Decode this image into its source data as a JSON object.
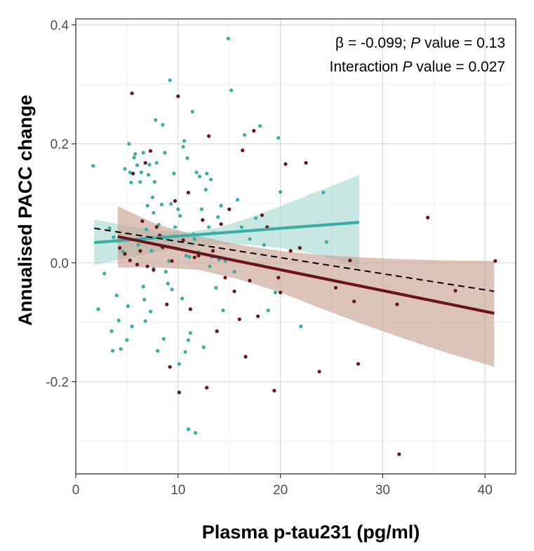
{
  "chart_data": {
    "type": "scatter",
    "title": "",
    "xlabel": "Plasma p-tau231 (pg/ml)",
    "ylabel": "Annualised PACC change",
    "xlim": [
      0,
      43
    ],
    "ylim": [
      -0.355,
      0.41
    ],
    "x_ticks": [
      0,
      10,
      20,
      30,
      40
    ],
    "y_ticks": [
      -0.2,
      0.0,
      0.2,
      0.4
    ],
    "x_tick_labels": [
      "0",
      "10",
      "20",
      "30",
      "40"
    ],
    "y_tick_labels": [
      "-0.2",
      "0.0",
      "0.2",
      "0.4"
    ],
    "grid": true,
    "annotation": {
      "line1_prefix": "β = -0.099; ",
      "line1_p": "P",
      "line1_suffix": " value = 0.13",
      "line2_prefix": "Interaction ",
      "line2_p": "P",
      "line2_suffix": " value = 0.027"
    },
    "series": [
      {
        "color": "#3aaea5",
        "band_color": "#a7d7d1",
        "fit": {
          "x": [
            1.8,
            27.7
          ],
          "y": [
            0.034,
            0.068
          ]
        },
        "band": {
          "x": [
            1.8,
            5,
            8,
            11,
            14,
            17,
            20,
            23,
            25,
            27.7
          ],
          "upper": [
            0.073,
            0.062,
            0.054,
            0.052,
            0.059,
            0.076,
            0.095,
            0.116,
            0.129,
            0.148
          ],
          "lower": [
            -0.004,
            0.008,
            0.018,
            0.028,
            0.031,
            0.03,
            0.025,
            0.016,
            0.007,
            -0.01
          ]
        },
        "points": [
          [
            1.7,
            0.163
          ],
          [
            2.2,
            -0.078
          ],
          [
            2.8,
            -0.018
          ],
          [
            3.3,
            0.058
          ],
          [
            3.5,
            -0.115
          ],
          [
            3.6,
            -0.148
          ],
          [
            3.7,
            0.043
          ],
          [
            4.0,
            -0.055
          ],
          [
            4.2,
            -0.097
          ],
          [
            4.4,
            -0.145
          ],
          [
            4.6,
            0.019
          ],
          [
            4.8,
            0.158
          ],
          [
            5.0,
            -0.13
          ],
          [
            5.1,
            -0.073
          ],
          [
            5.2,
            0.2
          ],
          [
            5.3,
            0.152
          ],
          [
            5.4,
            0.135
          ],
          [
            5.5,
            -0.107
          ],
          [
            5.7,
            0.177
          ],
          [
            5.8,
            0.183
          ],
          [
            6.0,
            0.164
          ],
          [
            6.1,
            0.03
          ],
          [
            6.3,
            0.136
          ],
          [
            6.4,
            0.152
          ],
          [
            6.6,
            0.185
          ],
          [
            6.6,
            -0.04
          ],
          [
            6.7,
            -0.062
          ],
          [
            6.8,
            -0.098
          ],
          [
            6.9,
            0.056
          ],
          [
            7.0,
            0.096
          ],
          [
            7.1,
            0.148
          ],
          [
            7.2,
            0.165
          ],
          [
            7.3,
            -0.082
          ],
          [
            7.4,
            0.02
          ],
          [
            7.5,
            0.11
          ],
          [
            7.6,
            0.084
          ],
          [
            7.7,
            0.136
          ],
          [
            7.8,
            0.24
          ],
          [
            7.9,
            0.168
          ],
          [
            8.0,
            -0.148
          ],
          [
            8.1,
            0.064
          ],
          [
            8.3,
            0.028
          ],
          [
            8.4,
            0.098
          ],
          [
            8.5,
            0.232
          ],
          [
            8.6,
            -0.128
          ],
          [
            8.7,
            0.185
          ],
          [
            8.8,
            -0.015
          ],
          [
            9.0,
            -0.035
          ],
          [
            9.1,
            0.003
          ],
          [
            9.2,
            0.307
          ],
          [
            9.3,
            0.099
          ],
          [
            9.4,
            -0.045
          ],
          [
            9.6,
            0.15
          ],
          [
            9.8,
            0.024
          ],
          [
            10.0,
            0.09
          ],
          [
            10.1,
            -0.17
          ],
          [
            10.2,
            0.079
          ],
          [
            10.4,
            -0.06
          ],
          [
            10.5,
            0.195
          ],
          [
            10.6,
            0.205
          ],
          [
            10.7,
            -0.15
          ],
          [
            10.9,
            0.176
          ],
          [
            11.0,
            -0.13
          ],
          [
            11.1,
            0.01
          ],
          [
            11.2,
            -0.118
          ],
          [
            11.4,
            0.254
          ],
          [
            11.5,
            0.048
          ],
          [
            11.6,
            0.04
          ],
          [
            11.8,
            0.152
          ],
          [
            12.0,
            0.018
          ],
          [
            12.1,
            0.145
          ],
          [
            12.3,
            0.09
          ],
          [
            12.5,
            -0.142
          ],
          [
            12.7,
            0.123
          ],
          [
            12.8,
            0.15
          ],
          [
            13.0,
            0.06
          ],
          [
            13.1,
            -0.006
          ],
          [
            13.3,
            0.01
          ],
          [
            13.5,
            0.05
          ],
          [
            13.7,
            -0.042
          ],
          [
            13.9,
            0.077
          ],
          [
            14.0,
            0.005
          ],
          [
            14.2,
            0.096
          ],
          [
            14.4,
            -0.08
          ],
          [
            14.6,
            0.003
          ],
          [
            14.9,
            0.377
          ],
          [
            15.2,
            0.29
          ],
          [
            15.5,
            -0.015
          ],
          [
            15.8,
            0.106
          ],
          [
            16.2,
            0.06
          ],
          [
            16.5,
            0.215
          ],
          [
            17.0,
            0.04
          ],
          [
            17.6,
            0.075
          ],
          [
            18.0,
            0.23
          ],
          [
            18.4,
            0.03
          ],
          [
            18.8,
            -0.08
          ],
          [
            19.5,
            -0.05
          ],
          [
            20.0,
            0.119
          ],
          [
            22.0,
            -0.107
          ],
          [
            24.2,
            0.118
          ],
          [
            24.5,
            0.035
          ],
          [
            11.0,
            -0.28
          ],
          [
            11.7,
            -0.286
          ],
          [
            19.8,
            0.21
          ],
          [
            13.2,
            0.14
          ],
          [
            6.5,
            0.07
          ],
          [
            7.6,
            -0.01
          ],
          [
            8.9,
            0.04
          ],
          [
            9.7,
            0.06
          ],
          [
            10.8,
            0.012
          ]
        ]
      },
      {
        "color": "#6b1419",
        "band_color": "#c79f91",
        "fit": {
          "x": [
            4.1,
            40.9
          ],
          "y": [
            0.044,
            -0.085
          ]
        },
        "band": {
          "x": [
            4.1,
            8,
            12,
            16,
            20,
            24,
            28,
            32,
            36,
            40.9
          ],
          "upper": [
            0.095,
            0.064,
            0.045,
            0.03,
            0.02,
            0.013,
            0.009,
            0.006,
            0.004,
            0.003
          ],
          "lower": [
            -0.008,
            -0.008,
            -0.012,
            -0.028,
            -0.05,
            -0.077,
            -0.103,
            -0.127,
            -0.15,
            -0.175
          ]
        },
        "points": [
          [
            4.3,
            0.025
          ],
          [
            4.8,
            0.015
          ],
          [
            5.3,
            0.004
          ],
          [
            5.5,
            0.285
          ],
          [
            5.6,
            0.15
          ],
          [
            6.0,
            -0.003
          ],
          [
            6.3,
            0.02
          ],
          [
            6.5,
            0.07
          ],
          [
            6.8,
            0.168
          ],
          [
            7.0,
            -0.006
          ],
          [
            7.3,
            0.188
          ],
          [
            7.6,
            -0.012
          ],
          [
            7.9,
            0.06
          ],
          [
            8.2,
            0.046
          ],
          [
            8.5,
            0.026
          ],
          [
            8.9,
            -0.07
          ],
          [
            9.2,
            -0.175
          ],
          [
            9.4,
            0.003
          ],
          [
            9.7,
            0.104
          ],
          [
            10.0,
            0.28
          ],
          [
            10.1,
            -0.218
          ],
          [
            10.5,
            0.038
          ],
          [
            11.0,
            0.118
          ],
          [
            11.2,
            -0.078
          ],
          [
            11.6,
            0.009
          ],
          [
            12.0,
            0.012
          ],
          [
            12.4,
            0.072
          ],
          [
            12.8,
            -0.21
          ],
          [
            13.0,
            0.213
          ],
          [
            13.4,
            0.02
          ],
          [
            13.8,
            -0.115
          ],
          [
            14.2,
            0.065
          ],
          [
            14.6,
            -0.025
          ],
          [
            15.0,
            0.09
          ],
          [
            15.5,
            -0.048
          ],
          [
            16.0,
            -0.095
          ],
          [
            16.3,
            0.189
          ],
          [
            16.6,
            -0.158
          ],
          [
            17.0,
            -0.03
          ],
          [
            17.4,
            0.222
          ],
          [
            17.8,
            -0.09
          ],
          [
            18.2,
            0.08
          ],
          [
            18.7,
            0.06
          ],
          [
            19.4,
            -0.215
          ],
          [
            19.8,
            -0.025
          ],
          [
            20.5,
            0.166
          ],
          [
            21.0,
            0.02
          ],
          [
            21.9,
            0.025
          ],
          [
            22.5,
            0.168
          ],
          [
            23.8,
            -0.183
          ],
          [
            25.4,
            -0.042
          ],
          [
            26.8,
            0.004
          ],
          [
            27.2,
            -0.065
          ],
          [
            27.6,
            -0.17
          ],
          [
            31.4,
            -0.07
          ],
          [
            31.6,
            -0.322
          ],
          [
            34.4,
            0.076
          ],
          [
            37.1,
            -0.047
          ],
          [
            41.0,
            0.003
          ],
          [
            20.0,
            -0.05
          ]
        ]
      },
      {
        "color": "#000000",
        "line_style": "dashed",
        "fit": {
          "x": [
            1.8,
            40.9
          ],
          "y": [
            0.058,
            -0.048
          ]
        }
      }
    ]
  }
}
